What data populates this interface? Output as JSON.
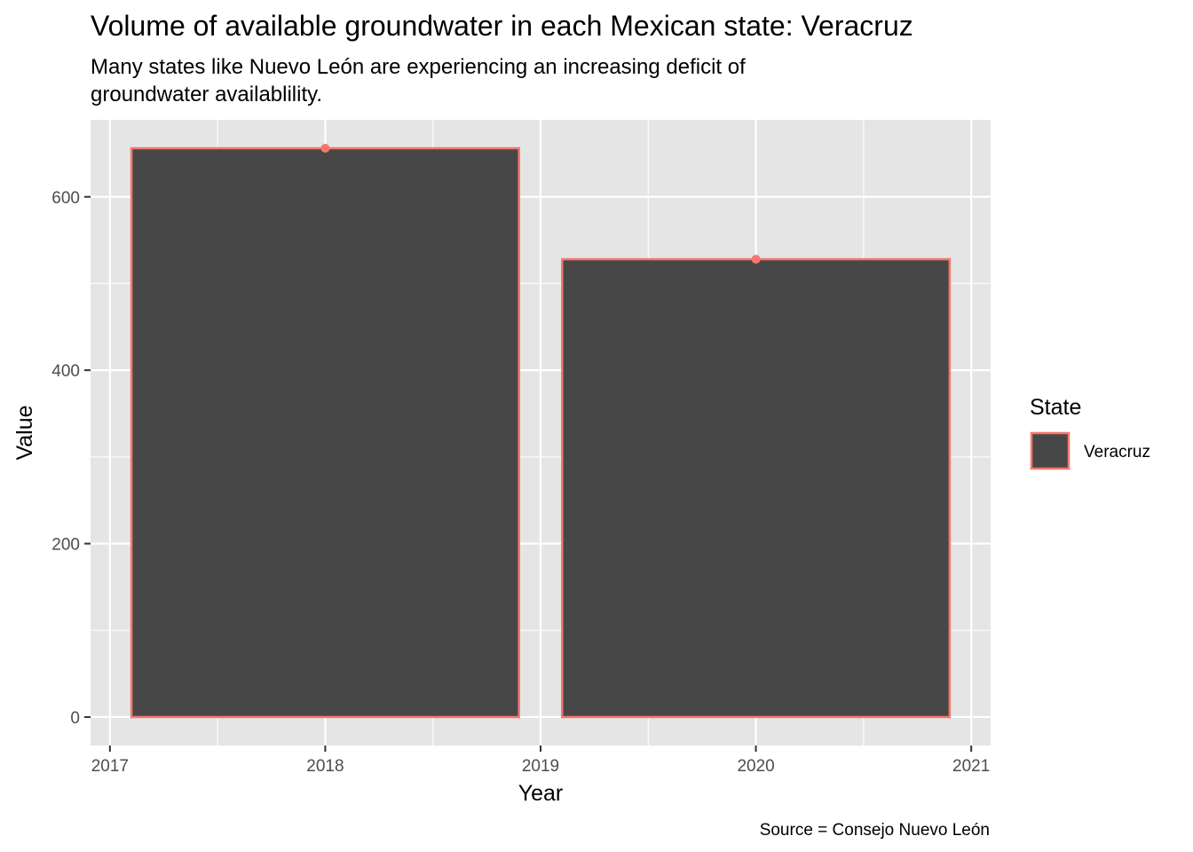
{
  "chart_data": {
    "type": "bar",
    "title": "Volume of available groundwater in each Mexican state: Veracruz",
    "subtitle_lines": [
      "Many states like Nuevo León are experiencing an increasing deficit of",
      "groundwater availablility."
    ],
    "xlabel": "Year",
    "ylabel": "Value",
    "caption": "Source = Consejo Nuevo León",
    "x_ticks": [
      2017,
      2018,
      2019,
      2020,
      2021
    ],
    "y_ticks": [
      0,
      200,
      400,
      600
    ],
    "xlim": [
      2016.91,
      2021.09
    ],
    "ylim": [
      -32.8,
      688.8
    ],
    "bar_width": 1.8,
    "series": [
      {
        "name": "Veracruz",
        "x": [
          2018,
          2020
        ],
        "values": [
          656,
          528
        ]
      }
    ],
    "legend": {
      "title": "State",
      "position": "right"
    },
    "colors": {
      "panel_bg": "#e5e5e5",
      "grid": "#ffffff",
      "bar_fill": "#474747",
      "bar_outline": "#f8766d",
      "point": "#f8766d"
    },
    "grid": true
  }
}
